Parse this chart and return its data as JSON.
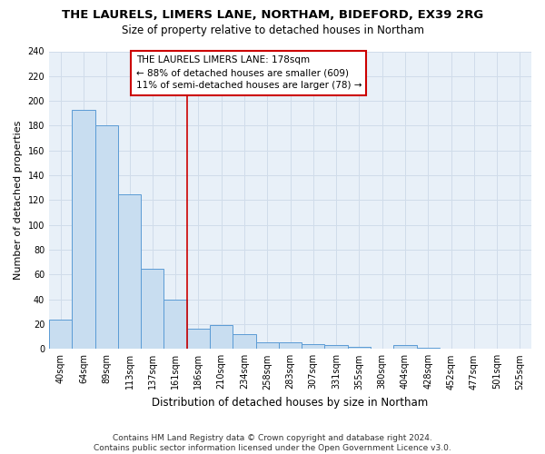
{
  "title1": "THE LAURELS, LIMERS LANE, NORTHAM, BIDEFORD, EX39 2RG",
  "title2": "Size of property relative to detached houses in Northam",
  "xlabel": "Distribution of detached houses by size in Northam",
  "ylabel": "Number of detached properties",
  "bin_labels": [
    "40sqm",
    "64sqm",
    "89sqm",
    "113sqm",
    "137sqm",
    "161sqm",
    "186sqm",
    "210sqm",
    "234sqm",
    "258sqm",
    "283sqm",
    "307sqm",
    "331sqm",
    "355sqm",
    "380sqm",
    "404sqm",
    "428sqm",
    "452sqm",
    "477sqm",
    "501sqm",
    "525sqm"
  ],
  "bar_values": [
    24,
    193,
    180,
    125,
    65,
    40,
    16,
    19,
    12,
    5,
    5,
    4,
    3,
    2,
    0,
    3,
    1,
    0,
    0,
    0,
    0
  ],
  "bar_color": "#c8ddf0",
  "bar_edge_color": "#5b9bd5",
  "vline_color": "#cc0000",
  "annotation_text": "THE LAURELS LIMERS LANE: 178sqm\n← 88% of detached houses are smaller (609)\n11% of semi-detached houses are larger (78) →",
  "annotation_box_color": "white",
  "annotation_box_edge": "#cc0000",
  "ylim": [
    0,
    240
  ],
  "yticks": [
    0,
    20,
    40,
    60,
    80,
    100,
    120,
    140,
    160,
    180,
    200,
    220,
    240
  ],
  "grid_color": "#d0dcea",
  "background_color": "#e8f0f8",
  "footer": "Contains HM Land Registry data © Crown copyright and database right 2024.\nContains public sector information licensed under the Open Government Licence v3.0.",
  "title1_fontsize": 9.5,
  "title2_fontsize": 8.5,
  "xlabel_fontsize": 8.5,
  "ylabel_fontsize": 8,
  "tick_fontsize": 7,
  "footer_fontsize": 6.5,
  "annot_fontsize": 7.5
}
